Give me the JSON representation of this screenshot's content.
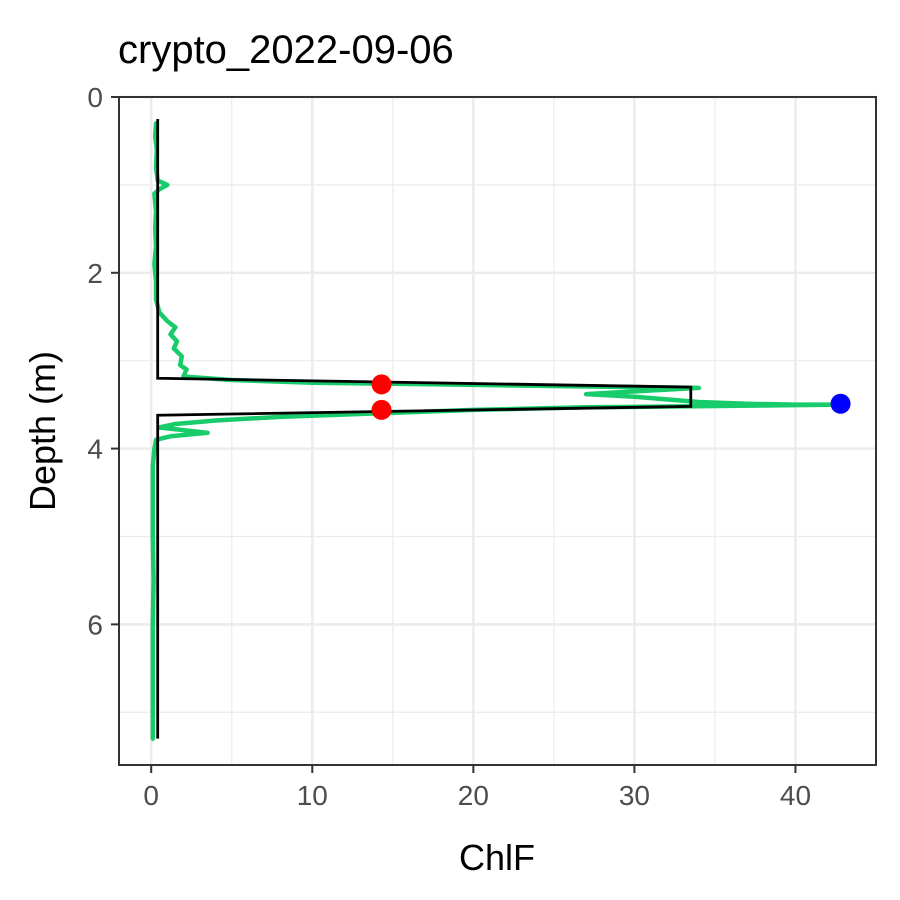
{
  "chart_data": {
    "type": "line",
    "title": "crypto_2022-09-06",
    "xlabel": "ChlF",
    "ylabel": "Depth (m)",
    "xlim": [
      -2,
      45
    ],
    "ylim": [
      7.6,
      0
    ],
    "y_reversed": true,
    "x_ticks": [
      0,
      10,
      20,
      30,
      40
    ],
    "y_ticks": [
      0,
      2,
      4,
      6
    ],
    "grid": true,
    "colors": {
      "profile": "#18cc6b",
      "fit": "#000000",
      "boundary_points": "#ff0000",
      "max_point": "#0000ff",
      "grid": "#ebebeb",
      "tick_label": "#4d4d4d"
    },
    "series": [
      {
        "role": "measured_profile",
        "points": [
          [
            0.3,
            0.3
          ],
          [
            0.25,
            0.45
          ],
          [
            0.35,
            0.6
          ],
          [
            0.3,
            0.8
          ],
          [
            0.4,
            0.95
          ],
          [
            1.0,
            1.0
          ],
          [
            0.5,
            1.05
          ],
          [
            0.2,
            1.1
          ],
          [
            0.3,
            1.3
          ],
          [
            0.25,
            1.5
          ],
          [
            0.3,
            1.7
          ],
          [
            0.2,
            1.9
          ],
          [
            0.3,
            2.1
          ],
          [
            0.3,
            2.3
          ],
          [
            0.5,
            2.45
          ],
          [
            1.0,
            2.55
          ],
          [
            1.5,
            2.62
          ],
          [
            1.2,
            2.7
          ],
          [
            1.6,
            2.78
          ],
          [
            1.4,
            2.86
          ],
          [
            1.9,
            2.95
          ],
          [
            1.8,
            3.05
          ],
          [
            2.2,
            3.1
          ],
          [
            2.0,
            3.18
          ],
          [
            5.0,
            3.22
          ],
          [
            10.0,
            3.25
          ],
          [
            18.0,
            3.27
          ],
          [
            26.0,
            3.29
          ],
          [
            34.0,
            3.31
          ],
          [
            30.0,
            3.35
          ],
          [
            27.0,
            3.38
          ],
          [
            30.0,
            3.41
          ],
          [
            32.0,
            3.44
          ],
          [
            34.0,
            3.47
          ],
          [
            37.0,
            3.49
          ],
          [
            40.0,
            3.5
          ],
          [
            42.9,
            3.5
          ],
          [
            38.0,
            3.51
          ],
          [
            33.0,
            3.52
          ],
          [
            27.0,
            3.53
          ],
          [
            20.0,
            3.56
          ],
          [
            14.0,
            3.6
          ],
          [
            8.0,
            3.64
          ],
          [
            4.0,
            3.68
          ],
          [
            1.5,
            3.72
          ],
          [
            0.5,
            3.76
          ],
          [
            1.5,
            3.78
          ],
          [
            3.5,
            3.82
          ],
          [
            1.2,
            3.86
          ],
          [
            0.3,
            3.9
          ],
          [
            0.2,
            4.0
          ],
          [
            0.1,
            4.2
          ],
          [
            0.1,
            4.6
          ],
          [
            0.1,
            5.0
          ],
          [
            0.15,
            5.5
          ],
          [
            0.1,
            6.0
          ],
          [
            0.1,
            6.5
          ],
          [
            0.1,
            7.0
          ],
          [
            0.1,
            7.3
          ]
        ]
      },
      {
        "role": "fitted_layer",
        "points": [
          [
            0.4,
            0.25
          ],
          [
            0.4,
            3.2
          ],
          [
            33.5,
            3.3
          ],
          [
            33.5,
            3.52
          ],
          [
            0.4,
            3.62
          ],
          [
            0.4,
            7.3
          ]
        ]
      },
      {
        "role": "layer_boundaries",
        "points": [
          [
            14.3,
            3.27
          ],
          [
            14.3,
            3.56
          ]
        ]
      },
      {
        "role": "maximum",
        "points": [
          [
            42.8,
            3.49
          ]
        ]
      }
    ]
  }
}
